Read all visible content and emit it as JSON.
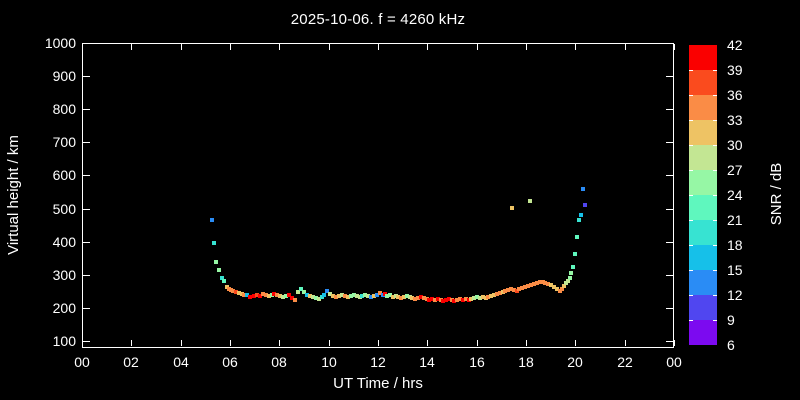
{
  "title": "2025-10-06. f = 4260 kHz",
  "axes": {
    "x": {
      "label": "UT Time / hrs",
      "tick_labels": [
        "00",
        "02",
        "04",
        "06",
        "08",
        "10",
        "12",
        "14",
        "16",
        "18",
        "20",
        "22",
        "00"
      ],
      "tick_step_hours": 2,
      "range_hours": [
        0,
        24
      ]
    },
    "y": {
      "label": "Virtual height / km",
      "tick_values": [
        100,
        200,
        300,
        400,
        500,
        600,
        700,
        800,
        900,
        1000
      ],
      "range_km": [
        82,
        1000
      ]
    }
  },
  "colorbar": {
    "label": "SNR / dB",
    "min_db": 6,
    "max_db": 42,
    "step_db": 3,
    "tick_labels": [
      "42",
      "39",
      "36",
      "33",
      "30",
      "27",
      "24",
      "21",
      "18",
      "15",
      "12",
      "9",
      "6"
    ],
    "colors_low_to_high": [
      "#7C0AF0",
      "#5046F0",
      "#2A8CF5",
      "#16C0E9",
      "#37E3D2",
      "#5FF7BE",
      "#96F7A5",
      "#C3E693",
      "#EEC364",
      "#FA8C46",
      "#FA4B1E",
      "#FA0000"
    ]
  },
  "chart_data": {
    "type": "scatter",
    "title": "2025-10-06. f = 4260 kHz",
    "xlabel": "UT Time / hrs",
    "ylabel": "Virtual height / km",
    "zlabel": "SNR / dB",
    "xlim": [
      0,
      24
    ],
    "ylim": [
      82,
      1000
    ],
    "zlim": [
      6,
      42
    ],
    "grid": false,
    "background": "#000000",
    "points_t_h_snr": [
      [
        5.29,
        464,
        13
      ],
      [
        5.37,
        397,
        19
      ],
      [
        5.45,
        339,
        25
      ],
      [
        5.57,
        315,
        25
      ],
      [
        5.66,
        291,
        19
      ],
      [
        5.74,
        282,
        22
      ],
      [
        5.86,
        262,
        31
      ],
      [
        5.95,
        256,
        34
      ],
      [
        6.03,
        255,
        34
      ],
      [
        6.13,
        252,
        34
      ],
      [
        6.23,
        249,
        37
      ],
      [
        6.35,
        245,
        31
      ],
      [
        6.47,
        242,
        31
      ],
      [
        6.58,
        240,
        34
      ],
      [
        6.7,
        238,
        16
      ],
      [
        6.82,
        233,
        40
      ],
      [
        6.97,
        235,
        40
      ],
      [
        7.09,
        239,
        37
      ],
      [
        7.21,
        237,
        40
      ],
      [
        7.33,
        243,
        34
      ],
      [
        7.45,
        240,
        34
      ],
      [
        7.57,
        236,
        31
      ],
      [
        7.69,
        239,
        25
      ],
      [
        7.79,
        243,
        40
      ],
      [
        7.91,
        240,
        34
      ],
      [
        8.03,
        236,
        31
      ],
      [
        8.15,
        232,
        28
      ],
      [
        8.27,
        235,
        25
      ],
      [
        8.39,
        240,
        40
      ],
      [
        8.51,
        229,
        40
      ],
      [
        8.63,
        224,
        34
      ],
      [
        8.75,
        248,
        28
      ],
      [
        8.87,
        258,
        22
      ],
      [
        8.99,
        249,
        25
      ],
      [
        9.11,
        238,
        16
      ],
      [
        9.23,
        235,
        31
      ],
      [
        9.35,
        232,
        28
      ],
      [
        9.47,
        229,
        25
      ],
      [
        9.59,
        227,
        28
      ],
      [
        9.71,
        233,
        19
      ],
      [
        9.81,
        240,
        16
      ],
      [
        9.93,
        250,
        13
      ],
      [
        10.05,
        243,
        28
      ],
      [
        10.17,
        237,
        31
      ],
      [
        10.29,
        233,
        34
      ],
      [
        10.41,
        236,
        31
      ],
      [
        10.53,
        239,
        28
      ],
      [
        10.65,
        236,
        34
      ],
      [
        10.77,
        232,
        31
      ],
      [
        10.89,
        235,
        25
      ],
      [
        11.01,
        238,
        25
      ],
      [
        11.13,
        235,
        28
      ],
      [
        11.25,
        232,
        28
      ],
      [
        11.37,
        235,
        19
      ],
      [
        11.49,
        238,
        25
      ],
      [
        11.61,
        235,
        28
      ],
      [
        11.73,
        232,
        13
      ],
      [
        11.85,
        235,
        31
      ],
      [
        11.97,
        238,
        13
      ],
      [
        12.08,
        245,
        34
      ],
      [
        12.19,
        239,
        13
      ],
      [
        12.29,
        242,
        40
      ],
      [
        12.38,
        236,
        25
      ],
      [
        12.49,
        239,
        25
      ],
      [
        12.6,
        234,
        31
      ],
      [
        12.71,
        237,
        28
      ],
      [
        12.83,
        234,
        31
      ],
      [
        12.94,
        231,
        34
      ],
      [
        13.05,
        234,
        31
      ],
      [
        13.17,
        237,
        25
      ],
      [
        13.28,
        234,
        28
      ],
      [
        13.39,
        231,
        31
      ],
      [
        13.51,
        228,
        34
      ],
      [
        13.62,
        231,
        34
      ],
      [
        13.73,
        234,
        40
      ],
      [
        13.85,
        231,
        34
      ],
      [
        13.97,
        228,
        34
      ],
      [
        14.07,
        225,
        40
      ],
      [
        14.2,
        228,
        40
      ],
      [
        14.31,
        225,
        34
      ],
      [
        14.42,
        228,
        40
      ],
      [
        14.54,
        225,
        34
      ],
      [
        14.65,
        222,
        40
      ],
      [
        14.76,
        225,
        40
      ],
      [
        14.88,
        228,
        40
      ],
      [
        14.99,
        225,
        34
      ],
      [
        15.1,
        222,
        40
      ],
      [
        15.22,
        225,
        34
      ],
      [
        15.33,
        228,
        34
      ],
      [
        15.44,
        225,
        40
      ],
      [
        15.57,
        228,
        34
      ],
      [
        15.68,
        225,
        40
      ],
      [
        15.79,
        228,
        31
      ],
      [
        15.91,
        231,
        28
      ],
      [
        16.02,
        234,
        25
      ],
      [
        16.13,
        231,
        28
      ],
      [
        16.25,
        234,
        31
      ],
      [
        16.36,
        231,
        31
      ],
      [
        16.47,
        234,
        34
      ],
      [
        16.6,
        237,
        31
      ],
      [
        16.71,
        240,
        31
      ],
      [
        16.82,
        243,
        34
      ],
      [
        16.94,
        246,
        34
      ],
      [
        17.05,
        249,
        31
      ],
      [
        17.16,
        252,
        34
      ],
      [
        17.28,
        254,
        34
      ],
      [
        17.39,
        256,
        34
      ],
      [
        17.5,
        254,
        34
      ],
      [
        17.62,
        252,
        37
      ],
      [
        17.73,
        258,
        34
      ],
      [
        17.84,
        260,
        34
      ],
      [
        17.95,
        263,
        34
      ],
      [
        18.07,
        266,
        34
      ],
      [
        18.19,
        268,
        34
      ],
      [
        18.31,
        272,
        34
      ],
      [
        18.43,
        276,
        34
      ],
      [
        18.55,
        279,
        34
      ],
      [
        18.67,
        277,
        34
      ],
      [
        18.79,
        274,
        34
      ],
      [
        18.91,
        271,
        34
      ],
      [
        19.03,
        268,
        31
      ],
      [
        19.15,
        264,
        31
      ],
      [
        19.27,
        257,
        31
      ],
      [
        19.38,
        250,
        34
      ],
      [
        19.46,
        257,
        34
      ],
      [
        19.54,
        266,
        31
      ],
      [
        19.62,
        276,
        28
      ],
      [
        19.7,
        282,
        28
      ],
      [
        19.78,
        291,
        25
      ],
      [
        19.84,
        306,
        25
      ],
      [
        19.92,
        324,
        22
      ],
      [
        19.99,
        364,
        22
      ],
      [
        20.06,
        415,
        22
      ],
      [
        20.14,
        464,
        19
      ],
      [
        20.22,
        482,
        16
      ],
      [
        20.3,
        560,
        13
      ],
      [
        20.38,
        512,
        10
      ],
      [
        17.45,
        503,
        32
      ],
      [
        18.16,
        524,
        28
      ]
    ]
  }
}
